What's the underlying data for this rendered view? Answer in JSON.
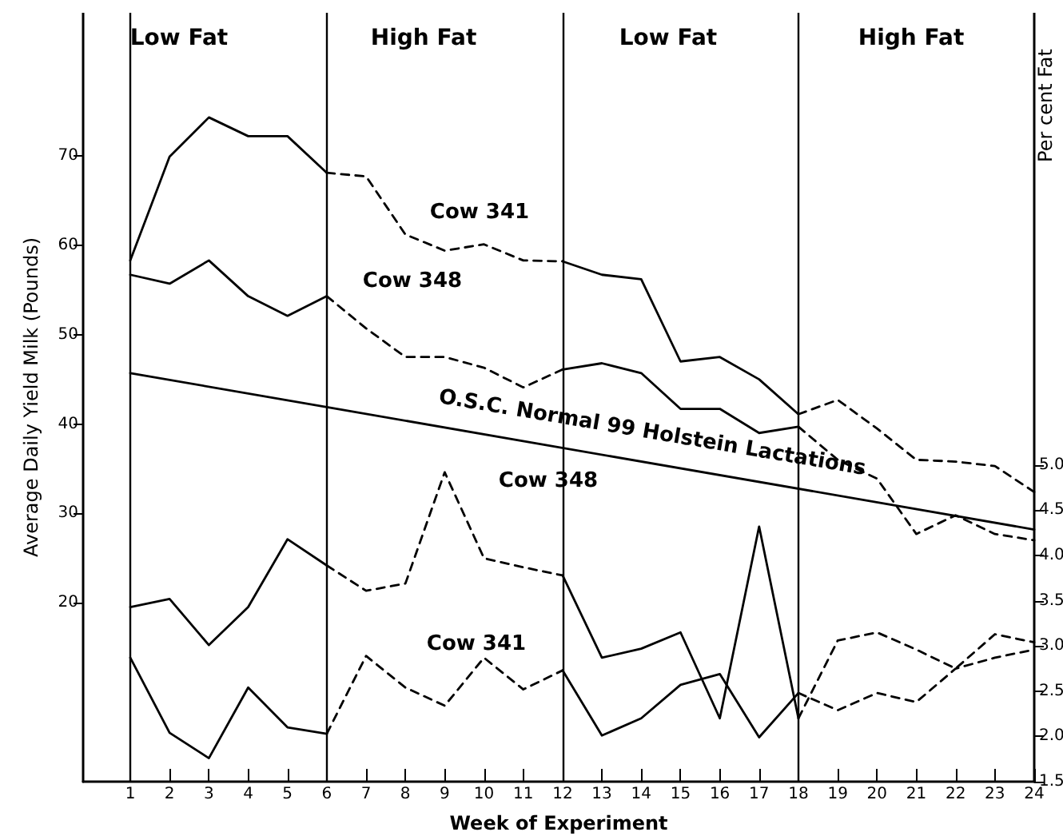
{
  "chart_data": {
    "type": "line",
    "xlabel": "Week of Experiment",
    "ylabel": "Average Daily Yield Milk (Pounds)",
    "y2label": "Per cent Fat",
    "x": [
      1,
      2,
      3,
      4,
      5,
      6,
      7,
      8,
      9,
      10,
      11,
      12,
      13,
      14,
      15,
      16,
      17,
      18,
      19,
      20,
      21,
      22,
      23,
      24
    ],
    "series": [
      {
        "color": "#000000",
        "line_style": "solid",
        "values": [
          58.3,
          69.9,
          74.3,
          72.2,
          72.2,
          68.1,
          null,
          null,
          null,
          null,
          null,
          58.2,
          56.7,
          56.2,
          47.0,
          47.5,
          45.0,
          41.1,
          null,
          null,
          null,
          null,
          null,
          null
        ]
      },
      {
        "color": "#000000",
        "line_style": "dashed",
        "values": [
          null,
          null,
          null,
          null,
          null,
          68.1,
          67.7,
          61.2,
          59.4,
          60.1,
          58.3,
          58.2,
          null,
          null,
          null,
          null,
          null,
          41.1,
          42.7,
          39.5,
          36.0,
          35.8,
          35.3,
          32.4
        ]
      },
      {
        "color": "#000000",
        "line_style": "solid",
        "values": [
          56.7,
          55.7,
          58.3,
          54.3,
          52.1,
          54.3,
          null,
          null,
          null,
          null,
          null,
          46.1,
          46.8,
          45.7,
          41.7,
          41.7,
          39.0,
          39.7,
          null,
          null,
          null,
          null,
          null,
          null
        ]
      },
      {
        "color": "#000000",
        "line_style": "dashed",
        "values": [
          null,
          null,
          null,
          null,
          null,
          54.3,
          50.7,
          47.5,
          47.5,
          46.3,
          44.1,
          46.1,
          null,
          null,
          null,
          null,
          null,
          39.7,
          36.0,
          33.9,
          27.7,
          29.8,
          27.7,
          27.0
        ]
      },
      {
        "color": "#000000",
        "line_style": "solid",
        "x": [
          1,
          24
        ],
        "values": [
          45.7,
          28.2
        ]
      },
      {
        "color": "#000000",
        "line_style": "solid",
        "axis": "y2",
        "values": [
          3.43,
          3.52,
          3.01,
          3.43,
          4.18,
          3.89,
          null,
          null,
          null,
          null,
          null,
          3.78,
          2.87,
          2.97,
          3.15,
          2.2,
          4.32,
          2.2,
          null,
          null,
          null,
          null,
          null,
          null
        ]
      },
      {
        "color": "#000000",
        "line_style": "dashed",
        "axis": "y2",
        "values": [
          null,
          null,
          null,
          null,
          null,
          3.89,
          3.61,
          3.69,
          4.92,
          3.97,
          3.87,
          3.78,
          null,
          null,
          null,
          null,
          null,
          2.2,
          3.06,
          3.15,
          2.96,
          2.75,
          3.13,
          3.04
        ]
      },
      {
        "color": "#000000",
        "line_style": "solid",
        "axis": "y2",
        "values": [
          2.87,
          2.04,
          1.76,
          2.54,
          2.1,
          2.03,
          null,
          null,
          null,
          null,
          null,
          2.73,
          2.01,
          2.2,
          2.57,
          2.69,
          1.99,
          2.48,
          null,
          null,
          null,
          null,
          null,
          null
        ]
      },
      {
        "color": "#000000",
        "line_style": "dashed",
        "axis": "y2",
        "values": [
          null,
          null,
          null,
          null,
          null,
          2.03,
          2.89,
          2.54,
          2.34,
          2.87,
          2.52,
          2.73,
          null,
          null,
          null,
          null,
          null,
          2.48,
          2.29,
          2.48,
          2.38,
          2.75,
          2.87,
          2.96
        ]
      }
    ],
    "xlim": [
      -0.2,
      24
    ],
    "xticks": [
      1,
      2,
      3,
      4,
      5,
      6,
      7,
      8,
      9,
      10,
      11,
      12,
      13,
      14,
      15,
      16,
      17,
      18,
      19,
      20,
      21,
      22,
      23,
      24
    ],
    "ylim": [
      0,
      86
    ],
    "yticks": [
      20,
      30,
      40,
      50,
      60,
      70
    ],
    "y2lim": [
      1.5,
      10
    ],
    "y2ticks": [
      1.5,
      {
        "value": 2,
        "label": "2.0"
      },
      2.5,
      {
        "value": 3,
        "label": "3.0"
      },
      3.5,
      {
        "value": 4,
        "label": "4.0"
      },
      4.5,
      {
        "value": 5,
        "label": "5.0"
      }
    ],
    "ref_lines": [
      {
        "axis": "x",
        "value": 1
      },
      {
        "axis": "x",
        "value": 6
      },
      {
        "axis": "x",
        "value": 12
      },
      {
        "axis": "x",
        "value": 18
      }
    ],
    "annotations": [
      "Low Fat",
      "High Fat",
      "Low Fat",
      "High Fat",
      "Cow 341",
      "Cow 348",
      "O.S.C. Normal 99 Holstein Lactations",
      "Cow 348",
      "Cow 341"
    ],
    "grid": false,
    "marker": "none"
  }
}
